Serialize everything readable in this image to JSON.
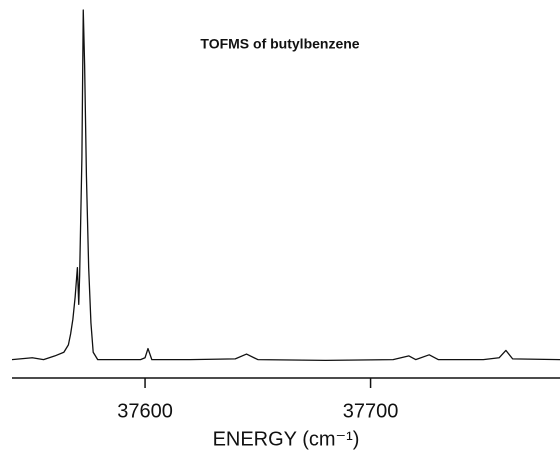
{
  "chart_data": {
    "type": "line",
    "title": "TOFMS of butylbenzene",
    "x_label": "ENERGY (cm⁻¹)",
    "x": [
      37541,
      37550,
      37555,
      37560,
      37564,
      37566,
      37567,
      37568,
      37569,
      37570,
      37570.6,
      37571,
      37572,
      37572.6,
      37573.2,
      37574,
      37575,
      37576,
      37577,
      37579,
      37585,
      37598,
      37600,
      37601.3,
      37603,
      37620,
      37640,
      37645,
      37650,
      37680,
      37710,
      37717,
      37720,
      37726,
      37730,
      37750,
      37757,
      37760,
      37763,
      37784
    ],
    "series": [
      {
        "color": "#111111",
        "values": [
          5,
          5.5,
          5,
          6,
          7,
          9,
          12,
          16,
          22,
          30,
          20,
          28,
          60,
          100,
          85,
          55,
          30,
          15,
          7,
          5,
          5,
          5,
          5.5,
          8,
          5,
          5,
          5.2,
          6.5,
          5,
          4.8,
          5,
          6,
          5,
          6.3,
          5,
          5,
          5.5,
          7.5,
          5.2,
          5
        ]
      }
    ],
    "xlim": [
      37541,
      37784
    ],
    "xticks": [
      37600,
      37700
    ],
    "ylim": [
      0,
      100
    ]
  }
}
